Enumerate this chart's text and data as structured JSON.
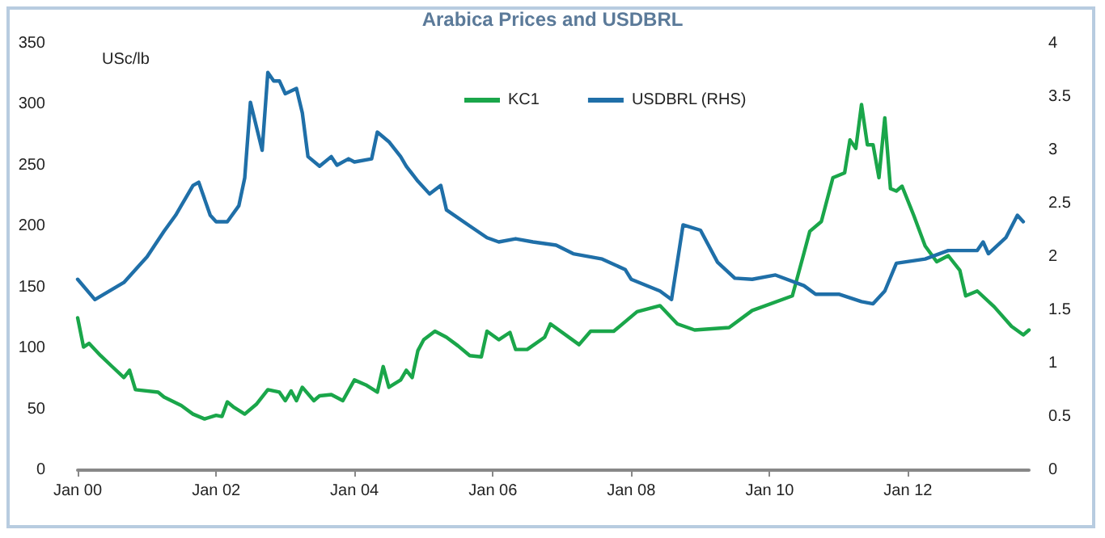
{
  "chart_data": {
    "type": "line",
    "title": "Arabica Prices and USDBRL",
    "ylabel": "USc/lb",
    "xlim": [
      "2000-01",
      "2013-10"
    ],
    "xticks": [
      {
        "value": "2000-01",
        "label": "Jan 00"
      },
      {
        "value": "2002-01",
        "label": "Jan 02"
      },
      {
        "value": "2004-01",
        "label": "Jan 04"
      },
      {
        "value": "2006-01",
        "label": "Jan 06"
      },
      {
        "value": "2008-01",
        "label": "Jan 08"
      },
      {
        "value": "2010-01",
        "label": "Jan 10"
      },
      {
        "value": "2012-01",
        "label": "Jan 12"
      }
    ],
    "ylim": [
      0,
      350
    ],
    "yticks": [
      0,
      50,
      100,
      150,
      200,
      250,
      300,
      350
    ],
    "y2lim": [
      0,
      4
    ],
    "y2ticks": [
      0,
      0.5,
      1,
      1.5,
      2,
      2.5,
      3,
      3.5,
      4
    ],
    "grid": false,
    "legend": "top",
    "marker": "none",
    "line_style": "solid",
    "series": [
      {
        "name": "KC1",
        "color": "#1aa64a",
        "x": [
          "2000-01",
          "2000-02",
          "2000-03",
          "2000-05",
          "2000-07",
          "2000-09",
          "2000-10",
          "2000-11",
          "2001-03",
          "2001-04",
          "2001-07",
          "2001-09",
          "2001-11",
          "2002-01",
          "2002-02",
          "2002-03",
          "2002-04",
          "2002-06",
          "2002-08",
          "2002-10",
          "2002-12",
          "2003-01",
          "2003-02",
          "2003-03",
          "2003-04",
          "2003-06",
          "2003-07",
          "2003-09",
          "2003-11",
          "2004-01",
          "2004-03",
          "2004-05",
          "2004-06",
          "2004-07",
          "2004-09",
          "2004-10",
          "2004-11",
          "2004-12",
          "2005-01",
          "2005-03",
          "2005-05",
          "2005-07",
          "2005-09",
          "2005-11",
          "2005-12",
          "2006-02",
          "2006-04",
          "2006-05",
          "2006-07",
          "2006-10",
          "2006-11",
          "2007-04",
          "2007-06",
          "2007-10",
          "2008-02",
          "2008-06",
          "2008-09",
          "2008-12",
          "2009-06",
          "2009-10",
          "2010-05",
          "2010-07",
          "2010-08",
          "2010-10",
          "2010-12",
          "2011-02",
          "2011-03",
          "2011-04",
          "2011-05",
          "2011-06",
          "2011-07",
          "2011-08",
          "2011-09",
          "2011-10",
          "2011-11",
          "2011-12",
          "2012-02",
          "2012-04",
          "2012-06",
          "2012-08",
          "2012-10",
          "2012-11",
          "2013-01",
          "2013-04",
          "2013-07",
          "2013-09",
          "2013-10"
        ],
        "values": [
          125,
          101,
          104,
          94,
          85,
          76,
          82,
          66,
          64,
          60,
          53,
          46,
          42,
          45,
          44,
          56,
          52,
          46,
          54,
          66,
          64,
          57,
          65,
          57,
          68,
          57,
          61,
          62,
          57,
          74,
          70,
          64,
          85,
          68,
          74,
          82,
          76,
          98,
          107,
          114,
          109,
          102,
          94,
          93,
          114,
          107,
          113,
          99,
          99,
          109,
          120,
          103,
          114,
          114,
          130,
          135,
          120,
          115,
          117,
          131,
          143,
          178,
          196,
          204,
          240,
          244,
          271,
          264,
          300,
          267,
          267,
          240,
          289,
          231,
          229,
          233,
          209,
          184,
          171,
          176,
          164,
          143,
          147,
          134,
          118,
          111,
          115
        ]
      },
      {
        "name": "USDBRL (RHS)",
        "color": "#1f6fa8",
        "axis": "y2",
        "x": [
          "2000-01",
          "2000-04",
          "2000-09",
          "2000-12",
          "2001-01",
          "2001-04",
          "2001-06",
          "2001-09",
          "2001-10",
          "2001-12",
          "2002-01",
          "2002-03",
          "2002-05",
          "2002-06",
          "2002-07",
          "2002-09",
          "2002-10",
          "2002-11",
          "2002-12",
          "2003-01",
          "2003-03",
          "2003-04",
          "2003-05",
          "2003-07",
          "2003-09",
          "2003-10",
          "2003-12",
          "2004-01",
          "2004-04",
          "2004-05",
          "2004-07",
          "2004-09",
          "2004-10",
          "2004-12",
          "2005-02",
          "2005-04",
          "2005-05",
          "2005-09",
          "2005-12",
          "2006-02",
          "2006-05",
          "2006-08",
          "2006-12",
          "2007-03",
          "2007-08",
          "2007-12",
          "2008-01",
          "2008-06",
          "2008-08",
          "2008-10",
          "2009-01",
          "2009-04",
          "2009-07",
          "2009-10",
          "2010-02",
          "2010-07",
          "2010-09",
          "2011-01",
          "2011-05",
          "2011-07",
          "2011-09",
          "2011-11",
          "2012-04",
          "2012-08",
          "2013-01",
          "2013-02",
          "2013-03",
          "2013-06",
          "2013-08",
          "2013-09"
        ],
        "values": [
          1.79,
          1.6,
          1.76,
          1.94,
          2.0,
          2.24,
          2.39,
          2.67,
          2.7,
          2.39,
          2.33,
          2.33,
          2.48,
          2.74,
          3.45,
          3.0,
          3.73,
          3.65,
          3.65,
          3.53,
          3.58,
          3.35,
          2.94,
          2.85,
          2.94,
          2.86,
          2.92,
          2.89,
          2.92,
          3.17,
          3.08,
          2.94,
          2.85,
          2.71,
          2.59,
          2.67,
          2.44,
          2.29,
          2.18,
          2.14,
          2.17,
          2.14,
          2.11,
          2.03,
          1.98,
          1.88,
          1.79,
          1.68,
          1.6,
          2.3,
          2.25,
          1.95,
          1.8,
          1.79,
          1.83,
          1.73,
          1.65,
          1.65,
          1.58,
          1.56,
          1.68,
          1.94,
          1.98,
          2.06,
          2.06,
          2.14,
          2.03,
          2.18,
          2.39,
          2.33
        ]
      }
    ]
  }
}
